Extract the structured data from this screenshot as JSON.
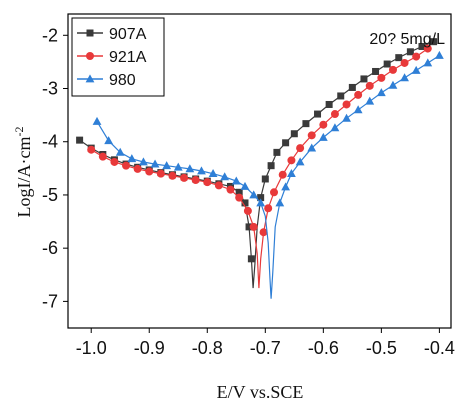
{
  "chart_data": {
    "type": "line",
    "title": "",
    "annotation": "20?   5mg/L",
    "xlabel": "E/V vs.SCE",
    "ylabel_main": "LogI/A·cm",
    "ylabel_sup": "-2",
    "xlim": [
      -1.04,
      -0.38
    ],
    "ylim": [
      -7.5,
      -1.6
    ],
    "xticks": [
      -1.0,
      -0.9,
      -0.8,
      -0.7,
      -0.6,
      -0.5,
      -0.4
    ],
    "xtick_labels": [
      "-1.0",
      "-0.9",
      "-0.8",
      "-0.7",
      "-0.6",
      "-0.5",
      "-0.4"
    ],
    "yticks": [
      -7,
      -6,
      -5,
      -4,
      -3,
      -2
    ],
    "ytick_labels": [
      "-7",
      "-6",
      "-5",
      "-4",
      "-3",
      "-2"
    ],
    "grid": false,
    "legend_position": "top-left",
    "series": [
      {
        "name": "907A",
        "color": "#3a3a3a",
        "marker": "square",
        "points": [
          [
            -1.02,
            -3.97
          ],
          [
            -1.0,
            -4.12
          ],
          [
            -0.98,
            -4.24
          ],
          [
            -0.96,
            -4.34
          ],
          [
            -0.94,
            -4.42
          ],
          [
            -0.92,
            -4.48
          ],
          [
            -0.9,
            -4.53
          ],
          [
            -0.88,
            -4.58
          ],
          [
            -0.86,
            -4.62
          ],
          [
            -0.84,
            -4.66
          ],
          [
            -0.82,
            -4.7
          ],
          [
            -0.8,
            -4.74
          ],
          [
            -0.78,
            -4.79
          ],
          [
            -0.76,
            -4.84
          ],
          [
            -0.745,
            -4.95
          ],
          [
            -0.735,
            -5.15
          ],
          [
            -0.728,
            -5.6
          ],
          [
            -0.724,
            -6.2
          ],
          [
            -0.721,
            -6.75
          ],
          [
            -0.718,
            -6.3
          ],
          [
            -0.714,
            -5.6
          ],
          [
            -0.708,
            -5.05
          ],
          [
            -0.7,
            -4.7
          ],
          [
            -0.69,
            -4.45
          ],
          [
            -0.68,
            -4.2
          ],
          [
            -0.665,
            -4.02
          ],
          [
            -0.65,
            -3.85
          ],
          [
            -0.63,
            -3.66
          ],
          [
            -0.61,
            -3.48
          ],
          [
            -0.59,
            -3.3
          ],
          [
            -0.57,
            -3.14
          ],
          [
            -0.55,
            -2.98
          ],
          [
            -0.53,
            -2.82
          ],
          [
            -0.51,
            -2.68
          ],
          [
            -0.49,
            -2.54
          ],
          [
            -0.47,
            -2.42
          ],
          [
            -0.45,
            -2.31
          ],
          [
            -0.43,
            -2.21
          ],
          [
            -0.41,
            -2.12
          ]
        ],
        "marker_points": [
          [
            -1.02,
            -3.97
          ],
          [
            -1.0,
            -4.12
          ],
          [
            -0.98,
            -4.24
          ],
          [
            -0.96,
            -4.34
          ],
          [
            -0.94,
            -4.42
          ],
          [
            -0.92,
            -4.48
          ],
          [
            -0.9,
            -4.53
          ],
          [
            -0.88,
            -4.58
          ],
          [
            -0.86,
            -4.62
          ],
          [
            -0.84,
            -4.66
          ],
          [
            -0.82,
            -4.7
          ],
          [
            -0.8,
            -4.74
          ],
          [
            -0.78,
            -4.79
          ],
          [
            -0.76,
            -4.84
          ],
          [
            -0.745,
            -4.95
          ],
          [
            -0.735,
            -5.15
          ],
          [
            -0.728,
            -5.6
          ],
          [
            -0.724,
            -6.2
          ],
          [
            -0.708,
            -5.05
          ],
          [
            -0.7,
            -4.7
          ],
          [
            -0.69,
            -4.45
          ],
          [
            -0.68,
            -4.2
          ],
          [
            -0.665,
            -4.02
          ],
          [
            -0.65,
            -3.85
          ],
          [
            -0.63,
            -3.66
          ],
          [
            -0.61,
            -3.48
          ],
          [
            -0.59,
            -3.3
          ],
          [
            -0.57,
            -3.14
          ],
          [
            -0.55,
            -2.98
          ],
          [
            -0.53,
            -2.82
          ],
          [
            -0.51,
            -2.68
          ],
          [
            -0.49,
            -2.54
          ],
          [
            -0.47,
            -2.42
          ],
          [
            -0.45,
            -2.31
          ],
          [
            -0.43,
            -2.21
          ],
          [
            -0.41,
            -2.12
          ]
        ]
      },
      {
        "name": "921A",
        "color": "#e8393a",
        "marker": "circle",
        "points": [
          [
            -1.0,
            -4.15
          ],
          [
            -0.98,
            -4.28
          ],
          [
            -0.96,
            -4.38
          ],
          [
            -0.94,
            -4.45
          ],
          [
            -0.92,
            -4.51
          ],
          [
            -0.9,
            -4.56
          ],
          [
            -0.88,
            -4.6
          ],
          [
            -0.86,
            -4.64
          ],
          [
            -0.84,
            -4.68
          ],
          [
            -0.82,
            -4.72
          ],
          [
            -0.8,
            -4.76
          ],
          [
            -0.78,
            -4.82
          ],
          [
            -0.76,
            -4.9
          ],
          [
            -0.745,
            -5.05
          ],
          [
            -0.73,
            -5.3
          ],
          [
            -0.72,
            -5.6
          ],
          [
            -0.714,
            -6.1
          ],
          [
            -0.711,
            -6.75
          ],
          [
            -0.708,
            -6.2
          ],
          [
            -0.703,
            -5.7
          ],
          [
            -0.695,
            -5.25
          ],
          [
            -0.685,
            -4.95
          ],
          [
            -0.67,
            -4.62
          ],
          [
            -0.655,
            -4.35
          ],
          [
            -0.64,
            -4.12
          ],
          [
            -0.62,
            -3.88
          ],
          [
            -0.6,
            -3.68
          ],
          [
            -0.58,
            -3.48
          ],
          [
            -0.56,
            -3.3
          ],
          [
            -0.54,
            -3.12
          ],
          [
            -0.52,
            -2.95
          ],
          [
            -0.5,
            -2.8
          ],
          [
            -0.48,
            -2.65
          ],
          [
            -0.46,
            -2.52
          ],
          [
            -0.44,
            -2.4
          ],
          [
            -0.42,
            -2.25
          ]
        ],
        "marker_points": [
          [
            -1.0,
            -4.15
          ],
          [
            -0.98,
            -4.28
          ],
          [
            -0.96,
            -4.38
          ],
          [
            -0.94,
            -4.45
          ],
          [
            -0.92,
            -4.51
          ],
          [
            -0.9,
            -4.56
          ],
          [
            -0.88,
            -4.6
          ],
          [
            -0.86,
            -4.64
          ],
          [
            -0.84,
            -4.68
          ],
          [
            -0.82,
            -4.72
          ],
          [
            -0.8,
            -4.76
          ],
          [
            -0.78,
            -4.82
          ],
          [
            -0.76,
            -4.9
          ],
          [
            -0.745,
            -5.05
          ],
          [
            -0.73,
            -5.3
          ],
          [
            -0.72,
            -5.6
          ],
          [
            -0.703,
            -5.7
          ],
          [
            -0.695,
            -5.25
          ],
          [
            -0.685,
            -4.95
          ],
          [
            -0.67,
            -4.62
          ],
          [
            -0.655,
            -4.35
          ],
          [
            -0.64,
            -4.12
          ],
          [
            -0.62,
            -3.88
          ],
          [
            -0.6,
            -3.68
          ],
          [
            -0.58,
            -3.48
          ],
          [
            -0.56,
            -3.3
          ],
          [
            -0.54,
            -3.12
          ],
          [
            -0.52,
            -2.95
          ],
          [
            -0.5,
            -2.8
          ],
          [
            -0.48,
            -2.65
          ],
          [
            -0.46,
            -2.52
          ],
          [
            -0.44,
            -2.4
          ],
          [
            -0.42,
            -2.25
          ]
        ]
      },
      {
        "name": "980",
        "color": "#2f7fd6",
        "marker": "triangle",
        "points": [
          [
            -0.99,
            -3.62
          ],
          [
            -0.97,
            -3.98
          ],
          [
            -0.95,
            -4.2
          ],
          [
            -0.93,
            -4.32
          ],
          [
            -0.91,
            -4.38
          ],
          [
            -0.89,
            -4.42
          ],
          [
            -0.87,
            -4.45
          ],
          [
            -0.85,
            -4.48
          ],
          [
            -0.83,
            -4.51
          ],
          [
            -0.81,
            -4.55
          ],
          [
            -0.79,
            -4.6
          ],
          [
            -0.77,
            -4.66
          ],
          [
            -0.75,
            -4.74
          ],
          [
            -0.735,
            -4.84
          ],
          [
            -0.72,
            -5.0
          ],
          [
            -0.708,
            -5.15
          ],
          [
            -0.7,
            -5.4
          ],
          [
            -0.695,
            -5.9
          ],
          [
            -0.692,
            -6.55
          ],
          [
            -0.69,
            -6.95
          ],
          [
            -0.687,
            -6.45
          ],
          [
            -0.683,
            -5.6
          ],
          [
            -0.675,
            -5.15
          ],
          [
            -0.665,
            -4.85
          ],
          [
            -0.655,
            -4.6
          ],
          [
            -0.64,
            -4.38
          ],
          [
            -0.62,
            -4.12
          ],
          [
            -0.6,
            -3.92
          ],
          [
            -0.58,
            -3.74
          ],
          [
            -0.56,
            -3.56
          ],
          [
            -0.54,
            -3.4
          ],
          [
            -0.52,
            -3.24
          ],
          [
            -0.5,
            -3.08
          ],
          [
            -0.48,
            -2.94
          ],
          [
            -0.46,
            -2.8
          ],
          [
            -0.44,
            -2.66
          ],
          [
            -0.42,
            -2.52
          ],
          [
            -0.4,
            -2.38
          ]
        ],
        "marker_points": [
          [
            -0.99,
            -3.62
          ],
          [
            -0.97,
            -3.98
          ],
          [
            -0.95,
            -4.2
          ],
          [
            -0.93,
            -4.32
          ],
          [
            -0.91,
            -4.38
          ],
          [
            -0.89,
            -4.42
          ],
          [
            -0.87,
            -4.45
          ],
          [
            -0.85,
            -4.48
          ],
          [
            -0.83,
            -4.51
          ],
          [
            -0.81,
            -4.55
          ],
          [
            -0.79,
            -4.6
          ],
          [
            -0.77,
            -4.66
          ],
          [
            -0.75,
            -4.74
          ],
          [
            -0.735,
            -4.84
          ],
          [
            -0.72,
            -5.0
          ],
          [
            -0.708,
            -5.15
          ],
          [
            -0.675,
            -5.15
          ],
          [
            -0.665,
            -4.85
          ],
          [
            -0.655,
            -4.6
          ],
          [
            -0.64,
            -4.38
          ],
          [
            -0.62,
            -4.12
          ],
          [
            -0.6,
            -3.92
          ],
          [
            -0.58,
            -3.74
          ],
          [
            -0.56,
            -3.56
          ],
          [
            -0.54,
            -3.4
          ],
          [
            -0.52,
            -3.24
          ],
          [
            -0.5,
            -3.08
          ],
          [
            -0.48,
            -2.94
          ],
          [
            -0.46,
            -2.8
          ],
          [
            -0.44,
            -2.66
          ],
          [
            -0.42,
            -2.52
          ],
          [
            -0.4,
            -2.38
          ]
        ]
      }
    ]
  }
}
